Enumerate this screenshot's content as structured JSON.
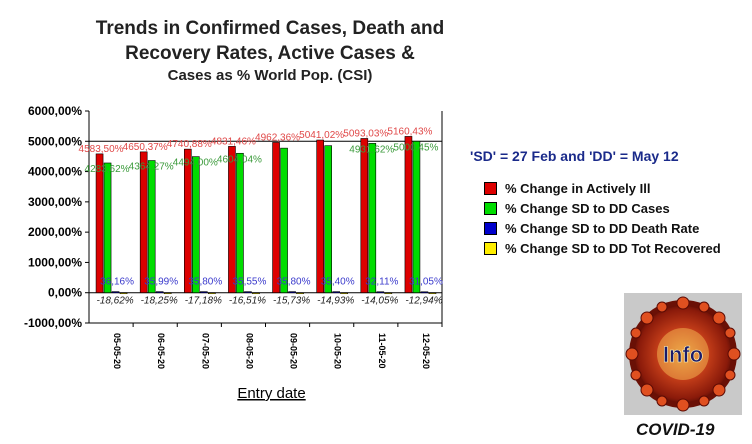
{
  "chart_data": {
    "type": "bar",
    "title_lines": [
      "Trends in Confirmed Cases, Death and",
      "Recovery Rates, Active Cases &",
      "Cases as % World Pop. (CSI)"
    ],
    "xlabel": "Entry date",
    "ylabel": "",
    "ylim": [
      -1000,
      6000
    ],
    "yticks": [
      "-1000,00%",
      "0,00%",
      "1000,00%",
      "2000,00%",
      "3000,00%",
      "4000,00%",
      "5000,00%",
      "6000,00%"
    ],
    "ytick_values": [
      -1000,
      0,
      1000,
      2000,
      3000,
      4000,
      5000,
      6000
    ],
    "grid": false,
    "legend_position": "right",
    "categories": [
      "05-05-20",
      "06-05-20",
      "07-05-20",
      "08-05-20",
      "09-05-20",
      "10-05-20",
      "11-05-20",
      "12-05-20"
    ],
    "series": [
      {
        "name": "% Change in Actively Ill",
        "color": "#dd0000",
        "label_color": "#e04848",
        "values": [
          4583.5,
          4650.37,
          4740.88,
          4831.46,
          4962.36,
          5041.02,
          5093.03,
          5160.43
        ],
        "labels": [
          "4583,50%",
          "4650,37%",
          "4740,88%",
          "4831,46%",
          "4962,36%",
          "5041,02%",
          "5093,03%",
          "5160,43%"
        ]
      },
      {
        "name": "% Change SD to DD Cases",
        "color": "#00dd00",
        "label_color": "#3a9a3a",
        "values": [
          4283.62,
          4364.27,
          4494.0,
          4604.04,
          4774.0,
          4855.0,
          4931.62,
          5000.45
        ],
        "labels": [
          "4283,62%",
          "4364,27%",
          "4494,00%",
          "4604,04%",
          "",
          "",
          "4931,62%",
          "5000,45%"
        ]
      },
      {
        "name": "% Change SD to DD Death Rate",
        "color": "#0000cc",
        "label_color": "#3a3acc",
        "values": [
          36.16,
          35.99,
          35.8,
          35.55,
          35.8,
          35.4,
          32.11,
          31.05
        ],
        "labels": [
          "36,16%",
          "35,99%",
          "35,80%",
          "35,55%",
          "35,80%",
          "35,40%",
          "32,11%",
          "31,05%"
        ]
      },
      {
        "name": "% Change SD to DD Tot Recovered",
        "color": "#ffee00",
        "label_color": "#222222",
        "values": [
          -18.62,
          -18.25,
          -17.18,
          -16.51,
          -15.73,
          -14.93,
          -14.05,
          -12.94
        ],
        "labels": [
          "-18,62%",
          "-18,25%",
          "-17,18%",
          "-16,51%",
          "-15,73%",
          "-14,93%",
          "-14,05%",
          "-12,94%"
        ]
      }
    ]
  },
  "annotation": "'SD' = 27 Feb and 'DD' = May 12",
  "logo": {
    "text": "Info",
    "caption": "COVID-19"
  }
}
